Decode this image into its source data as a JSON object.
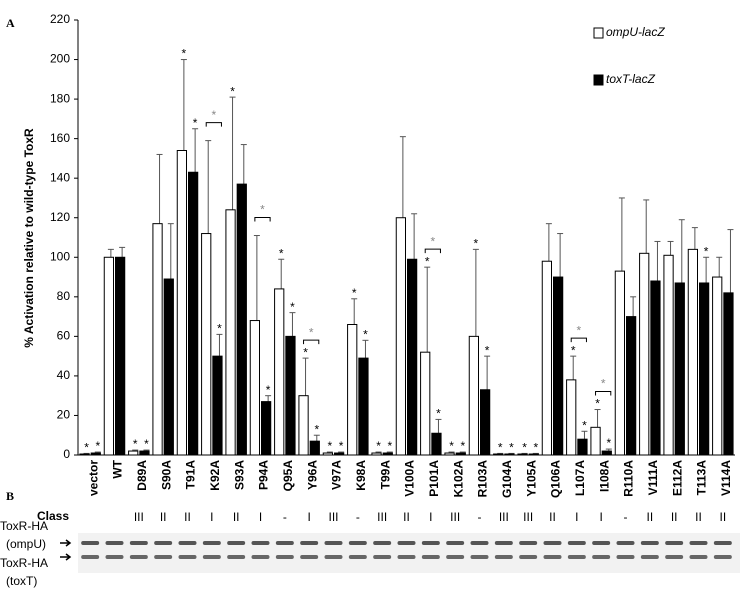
{
  "chart_data": {
    "type": "bar",
    "panel_labels": [
      "A",
      "B"
    ],
    "ylabel": "% Activation relative to wild-type ToxR",
    "categories": [
      "vector",
      "WT",
      "D89A",
      "S90A",
      "T91A",
      "K92A",
      "S93A",
      "P94A",
      "Q95A",
      "Y96A",
      "V97A",
      "K98A",
      "T99A",
      "V100A",
      "P101A",
      "K102A",
      "R103A",
      "G104A",
      "Y105A",
      "Q106A",
      "L107A",
      "I108A",
      "R110A",
      "V111A",
      "E112A",
      "T113A",
      "V114A"
    ],
    "series": [
      {
        "name": "ompU-lacZ",
        "color": "#ffffff",
        "values": [
          0.5,
          100,
          2,
          117,
          154,
          112,
          124,
          68,
          84,
          30,
          1,
          66,
          1,
          120,
          52,
          1,
          60,
          0.5,
          0.5,
          98,
          38,
          14,
          93,
          102,
          101,
          104,
          90
        ],
        "errors": [
          0.3,
          4,
          0.5,
          35,
          46,
          47,
          57,
          43,
          15,
          19,
          0.5,
          13,
          0.5,
          41,
          43,
          0.5,
          44,
          0.3,
          0.3,
          19,
          12,
          9,
          37,
          27,
          7,
          11,
          10
        ],
        "stars": [
          true,
          false,
          true,
          false,
          true,
          false,
          true,
          false,
          true,
          true,
          true,
          true,
          true,
          false,
          true,
          true,
          true,
          true,
          true,
          false,
          true,
          true,
          false,
          false,
          false,
          false,
          false
        ]
      },
      {
        "name": "toxT-lacZ",
        "color": "#000000",
        "values": [
          1,
          100,
          2,
          89,
          143,
          50,
          137,
          27,
          60,
          7,
          1,
          49,
          1,
          99,
          11,
          1,
          33,
          0.5,
          0.5,
          90,
          8,
          2,
          70,
          88,
          87,
          87,
          82
        ],
        "errors": [
          0.5,
          5,
          0.5,
          28,
          22,
          11,
          20,
          3,
          12,
          3,
          0.5,
          9,
          0.5,
          23,
          7,
          0.5,
          17,
          0.3,
          0.3,
          22,
          4,
          1,
          10,
          20,
          32,
          13,
          32
        ],
        "stars": [
          true,
          false,
          true,
          false,
          true,
          true,
          false,
          true,
          true,
          true,
          true,
          true,
          true,
          false,
          true,
          true,
          true,
          true,
          true,
          false,
          true,
          true,
          false,
          false,
          false,
          true,
          false
        ]
      }
    ],
    "significance_marker": "*",
    "bracket_stars": [
      false,
      false,
      false,
      false,
      false,
      true,
      false,
      true,
      false,
      true,
      false,
      false,
      false,
      false,
      true,
      false,
      false,
      false,
      false,
      false,
      true,
      true,
      false,
      false,
      false,
      false,
      false
    ],
    "class_label": "Class",
    "classes": [
      null,
      null,
      "III",
      "II",
      "II",
      "I",
      "II",
      "I",
      "-",
      "I",
      "III",
      "-",
      "III",
      "II",
      "I",
      "III",
      "-",
      "III",
      "III",
      "II",
      "I",
      "I",
      "-",
      "II",
      "II",
      "II",
      "II"
    ],
    "blot_labels": [
      [
        "ToxR-HA",
        "(ompU)"
      ],
      [
        "ToxR-HA",
        "(toxT)"
      ]
    ],
    "ylim": [
      0,
      220
    ],
    "yticks": [
      0,
      20,
      40,
      60,
      80,
      100,
      120,
      140,
      160,
      180,
      200,
      220
    ],
    "legend": "upper right",
    "grid": false
  }
}
